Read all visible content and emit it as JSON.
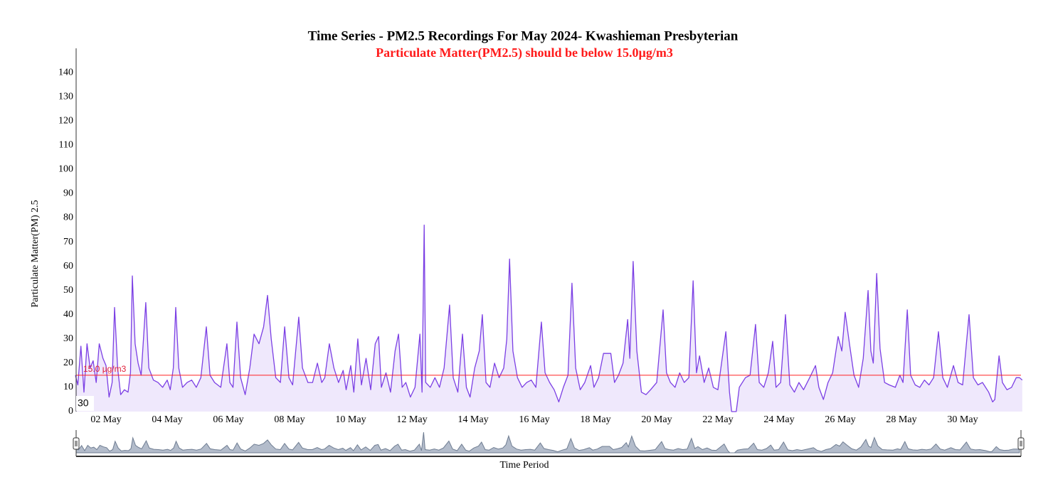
{
  "chart_data": {
    "type": "line",
    "title": "Time Series - PM2.5 Recordings For May 2024- Kwashieman Presbyterian",
    "subtitle": "Particulate Matter(PM2.5) should be below 15.0µg/m3",
    "y_label": "Particulate Matter(PM) 2.5",
    "x_label": "Time Period",
    "threshold": 15,
    "threshold_label": "15.0 µg/m3",
    "range_label": "30",
    "color": "#7b3fe4",
    "fill": "#efe8fc",
    "threshold_color": "#ff2020",
    "xlim": [
      1,
      32
    ],
    "ylim": [
      0,
      150
    ],
    "xticks": [
      {
        "value": 2,
        "label": "02 May"
      },
      {
        "value": 4,
        "label": "04 May"
      },
      {
        "value": 6,
        "label": "06 May"
      },
      {
        "value": 8,
        "label": "08 May"
      },
      {
        "value": 10,
        "label": "10 May"
      },
      {
        "value": 12,
        "label": "12 May"
      },
      {
        "value": 14,
        "label": "14 May"
      },
      {
        "value": 16,
        "label": "16 May"
      },
      {
        "value": 18,
        "label": "18 May"
      },
      {
        "value": 20,
        "label": "20 May"
      },
      {
        "value": 22,
        "label": "22 May"
      },
      {
        "value": 24,
        "label": "24 May"
      },
      {
        "value": 26,
        "label": "26 May"
      },
      {
        "value": 28,
        "label": "28 May"
      },
      {
        "value": 30,
        "label": "30 May"
      }
    ],
    "yticks": [
      0,
      10,
      20,
      30,
      40,
      50,
      60,
      70,
      80,
      90,
      100,
      110,
      120,
      130,
      140
    ],
    "x": [
      1.0,
      1.08,
      1.18,
      1.28,
      1.38,
      1.48,
      1.58,
      1.68,
      1.78,
      1.9,
      2.0,
      2.1,
      2.2,
      2.28,
      2.38,
      2.48,
      2.6,
      2.72,
      2.8,
      2.86,
      2.95,
      3.05,
      3.15,
      3.3,
      3.4,
      3.55,
      3.7,
      3.85,
      4.0,
      4.1,
      4.2,
      4.28,
      4.38,
      4.5,
      4.65,
      4.8,
      4.95,
      5.1,
      5.28,
      5.4,
      5.55,
      5.75,
      5.95,
      6.05,
      6.15,
      6.28,
      6.4,
      6.55,
      6.7,
      6.84,
      7.0,
      7.15,
      7.28,
      7.4,
      7.55,
      7.7,
      7.84,
      7.98,
      8.1,
      8.3,
      8.42,
      8.6,
      8.75,
      8.91,
      9.05,
      9.15,
      9.3,
      9.45,
      9.6,
      9.75,
      9.85,
      10.0,
      10.1,
      10.23,
      10.35,
      10.5,
      10.65,
      10.8,
      10.91,
      11.0,
      11.15,
      11.3,
      11.45,
      11.56,
      11.68,
      11.8,
      11.95,
      12.1,
      12.26,
      12.33,
      12.4,
      12.45,
      12.6,
      12.75,
      12.9,
      13.05,
      13.23,
      13.35,
      13.5,
      13.65,
      13.78,
      13.9,
      14.05,
      14.2,
      14.3,
      14.42,
      14.55,
      14.7,
      14.85,
      15.0,
      15.1,
      15.19,
      15.3,
      15.45,
      15.6,
      15.75,
      15.9,
      16.05,
      16.23,
      16.35,
      16.5,
      16.65,
      16.8,
      16.95,
      17.1,
      17.23,
      17.35,
      17.5,
      17.65,
      17.84,
      17.95,
      18.1,
      18.26,
      18.5,
      18.62,
      18.75,
      18.9,
      19.05,
      19.12,
      19.23,
      19.35,
      19.5,
      19.65,
      19.8,
      20.0,
      20.21,
      20.32,
      20.45,
      20.6,
      20.75,
      20.9,
      21.05,
      21.19,
      21.3,
      21.4,
      21.55,
      21.7,
      21.85,
      22.0,
      22.26,
      22.38,
      22.45,
      22.6,
      22.7,
      22.9,
      23.05,
      23.23,
      23.35,
      23.5,
      23.65,
      23.79,
      23.9,
      24.05,
      24.21,
      24.35,
      24.5,
      24.65,
      24.8,
      25.0,
      25.19,
      25.3,
      25.45,
      25.6,
      25.75,
      25.93,
      26.05,
      26.16,
      26.3,
      26.45,
      26.6,
      26.75,
      26.91,
      27.0,
      27.08,
      27.19,
      27.3,
      27.45,
      27.6,
      27.8,
      27.95,
      28.05,
      28.19,
      28.3,
      28.45,
      28.6,
      28.75,
      28.9,
      29.05,
      29.21,
      29.35,
      29.5,
      29.7,
      29.85,
      30.0,
      30.21,
      30.35,
      30.5,
      30.65,
      30.85,
      30.98,
      31.05,
      31.19,
      31.3,
      31.45,
      31.6,
      31.75,
      31.86,
      31.95
    ],
    "values": [
      15,
      11,
      27,
      8,
      28,
      18,
      21,
      12,
      28,
      22,
      19,
      6,
      12,
      43,
      18,
      7,
      9,
      8,
      16,
      56,
      28,
      20,
      15,
      45,
      18,
      13,
      12,
      10,
      13,
      9,
      18,
      43,
      18,
      10,
      12,
      13,
      10,
      14,
      35,
      15,
      12,
      10,
      28,
      12,
      10,
      37,
      14,
      7,
      18,
      32,
      28,
      35,
      48,
      30,
      14,
      12,
      35,
      14,
      11,
      39,
      18,
      12,
      12,
      20,
      12,
      14,
      28,
      18,
      12,
      17,
      9,
      19,
      8,
      30,
      11,
      22,
      9,
      28,
      31,
      10,
      16,
      8,
      25,
      32,
      10,
      12,
      6,
      10,
      32,
      8,
      77,
      12,
      10,
      14,
      10,
      18,
      44,
      14,
      8,
      32,
      10,
      6,
      18,
      25,
      40,
      12,
      10,
      20,
      14,
      18,
      30,
      63,
      25,
      14,
      10,
      12,
      13,
      10,
      37,
      16,
      12,
      9,
      4,
      10,
      15,
      53,
      18,
      9,
      12,
      19,
      10,
      14,
      24,
      24,
      12,
      15,
      20,
      38,
      22,
      62,
      25,
      8,
      7,
      9,
      12,
      42,
      16,
      12,
      10,
      16,
      12,
      14,
      54,
      16,
      23,
      12,
      18,
      10,
      9,
      33,
      8,
      0,
      0,
      10,
      14,
      15,
      36,
      12,
      10,
      16,
      29,
      10,
      12,
      40,
      11,
      8,
      12,
      9,
      14,
      19,
      10,
      5,
      12,
      16,
      31,
      25,
      41,
      28,
      15,
      10,
      22,
      50,
      25,
      20,
      57,
      26,
      12,
      11,
      10,
      15,
      12,
      42,
      15,
      11,
      10,
      13,
      11,
      14,
      33,
      14,
      10,
      19,
      12,
      11,
      40,
      14,
      11,
      12,
      8,
      4,
      5,
      23,
      12,
      9,
      10,
      14,
      14,
      13
    ]
  }
}
